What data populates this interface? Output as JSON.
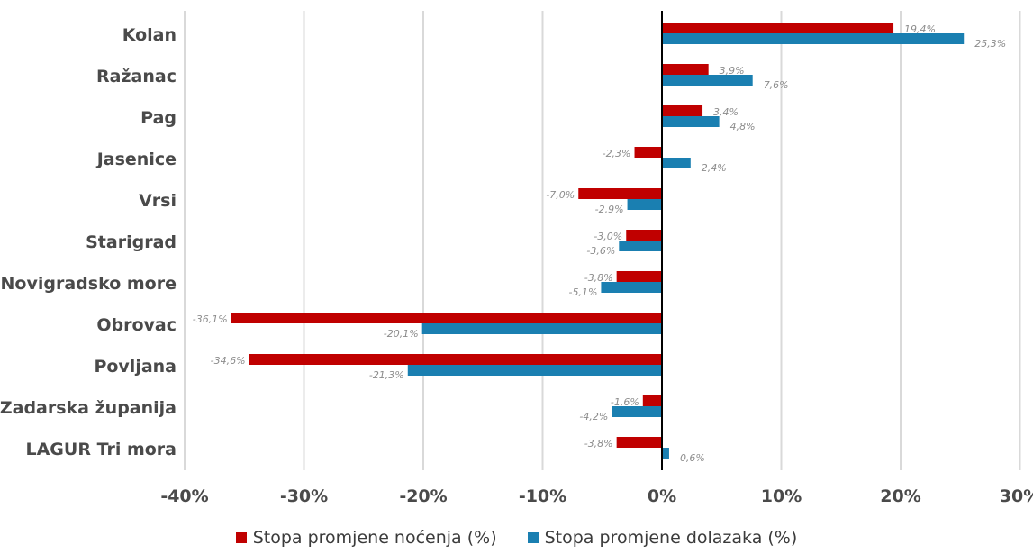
{
  "chart_data": {
    "type": "bar",
    "orientation": "horizontal",
    "categories": [
      "Kolan",
      "Ražanac",
      "Pag",
      "Jasenice",
      "Vrsi",
      "Starigrad",
      "Novigradsko more",
      "Obrovac",
      "Povljana",
      "Zadarska županija",
      "LAGUR Tri mora"
    ],
    "series": [
      {
        "name": "Stopa promjene noćenja (%)",
        "color": "#c00000",
        "values": [
          19.4,
          3.9,
          3.4,
          -2.3,
          -7.0,
          -3.0,
          -3.8,
          -36.1,
          -34.6,
          -1.6,
          -3.8
        ],
        "labels": [
          "19,4%",
          "3,9%",
          "3,4%",
          "-2,3%",
          "-7,0%",
          "-3,0%",
          "-3,8%",
          "-36,1%",
          "-34,6%",
          "-1,6%",
          "-3,8%"
        ]
      },
      {
        "name": "Stopa promjene dolazaka (%)",
        "color": "#1a7fb1",
        "values": [
          25.3,
          7.6,
          4.8,
          2.4,
          -2.9,
          -3.6,
          -5.1,
          -20.1,
          -21.3,
          -4.2,
          0.6
        ],
        "labels": [
          "25,3%",
          "7,6%",
          "4,8%",
          "2,4%",
          "-2,9%",
          "-3,6%",
          "-5,1%",
          "-20,1%",
          "-21,3%",
          "-4,2%",
          "0,6%"
        ]
      }
    ],
    "x_ticks": [
      -40,
      -30,
      -20,
      -10,
      0,
      10,
      20,
      30
    ],
    "x_tick_labels": [
      "-40%",
      "-30%",
      "-20%",
      "-10%",
      "0%",
      "10%",
      "20%",
      "30%"
    ],
    "xlim": [
      -40,
      30
    ],
    "grid": true,
    "legend_position": "bottom"
  }
}
